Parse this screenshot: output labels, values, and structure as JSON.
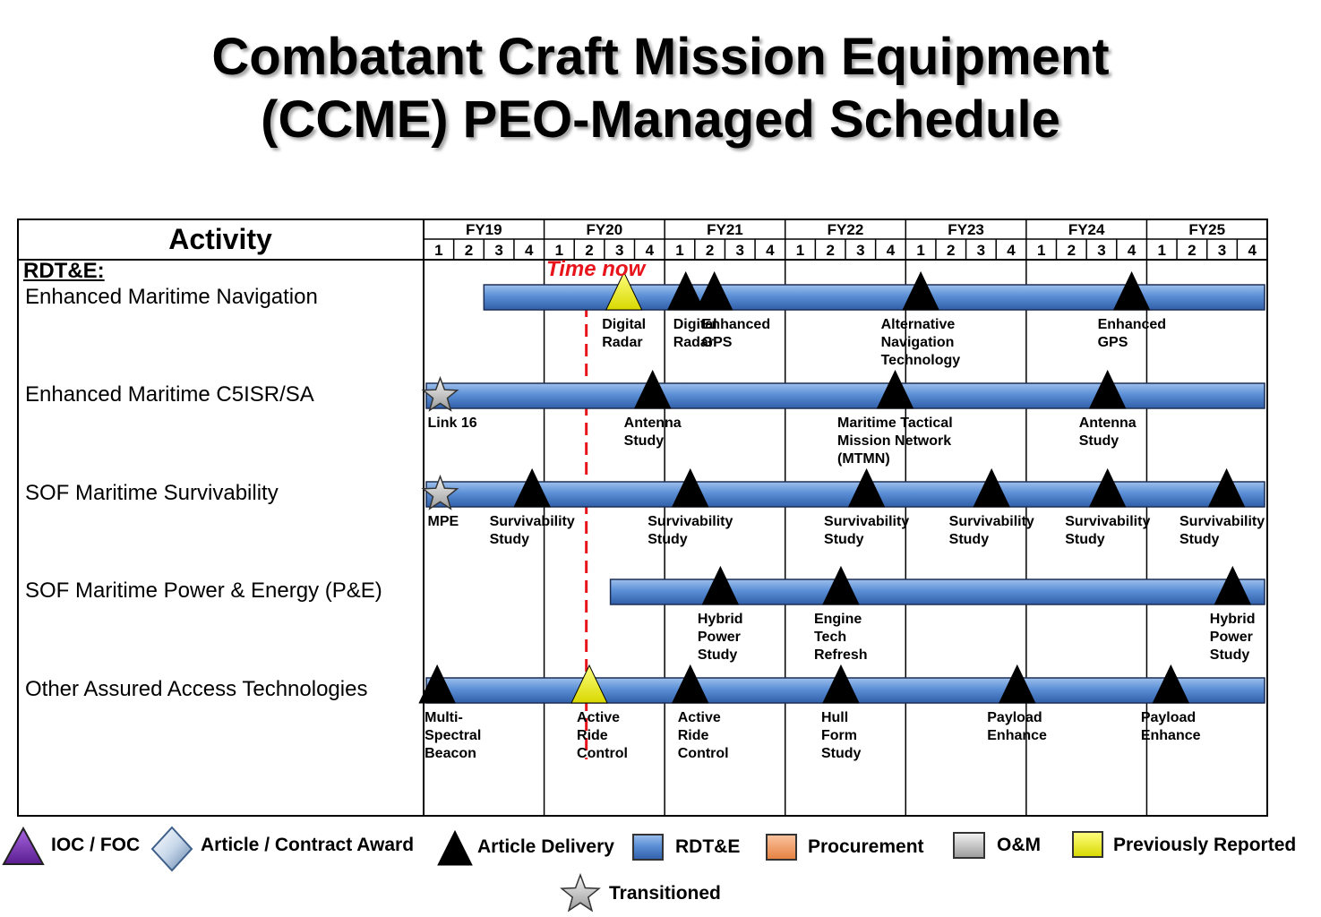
{
  "title": {
    "line1": "Combatant Craft Mission Equipment",
    "line2": "(CCME) PEO-Managed Schedule"
  },
  "header": {
    "activity": "Activity",
    "fiscal_years": [
      "FY19",
      "FY20",
      "FY21",
      "FY22",
      "FY23",
      "FY24",
      "FY25"
    ],
    "quarters": [
      "1",
      "2",
      "3",
      "4"
    ]
  },
  "section_label": "RDT&E:",
  "time_now": {
    "label": "Time now",
    "fy": "FY20",
    "quarter": 1.4,
    "color": "#e8141b"
  },
  "colors": {
    "rdte_bar": "#5b8fd6",
    "previously_reported": "#f3f300",
    "article_delivery": "#000000",
    "ioc": "#7a2fb5",
    "procurement": "#f4a070",
    "om": "#d0d0d0"
  },
  "rows": [
    {
      "name": "Enhanced Maritime Navigation",
      "bar_start": 2.0,
      "bar_end": 28.0,
      "milestones": [
        {
          "pos": 6.65,
          "type": "previously_reported",
          "lines": [
            "Digital",
            "Radar"
          ],
          "align": "center"
        },
        {
          "pos": 8.7,
          "type": "article_delivery",
          "lines": [
            "Digital",
            "Radar"
          ],
          "align": "left"
        },
        {
          "pos": 9.65,
          "type": "article_delivery",
          "lines": [
            "Enhanced",
            "GPS"
          ],
          "align": "left"
        },
        {
          "pos": 16.5,
          "type": "article_delivery",
          "lines": [
            "Alternative",
            "Navigation",
            "Technology"
          ],
          "align": "center"
        },
        {
          "pos": 23.5,
          "type": "article_delivery",
          "lines": [
            "Enhanced",
            "GPS"
          ],
          "align": "center"
        }
      ]
    },
    {
      "name": "Enhanced Maritime C5ISR/SA",
      "bar_start": 0.0,
      "bar_end": 28.0,
      "milestones": [
        {
          "pos": 0.55,
          "type": "transitioned",
          "lines": [
            "Link 16"
          ],
          "align": "left"
        },
        {
          "pos": 7.6,
          "type": "article_delivery",
          "lines": [
            "Antenna",
            "Study"
          ],
          "align": "center"
        },
        {
          "pos": 15.65,
          "type": "article_delivery",
          "lines": [
            "Maritime Tactical",
            "Mission Network",
            "(MTMN)"
          ],
          "align": "center"
        },
        {
          "pos": 22.7,
          "type": "article_delivery",
          "lines": [
            "Antenna",
            "Study"
          ],
          "align": "center"
        }
      ]
    },
    {
      "name": "SOF Maritime Survivability",
      "bar_start": 0.0,
      "bar_end": 28.0,
      "milestones": [
        {
          "pos": 0.55,
          "type": "transitioned",
          "lines": [
            "MPE"
          ],
          "align": "left"
        },
        {
          "pos": 3.6,
          "type": "article_delivery",
          "lines": [
            "Survivability",
            "Study"
          ],
          "align": "center"
        },
        {
          "pos": 8.85,
          "type": "article_delivery",
          "lines": [
            "Survivability",
            "Study"
          ],
          "align": "center"
        },
        {
          "pos": 14.7,
          "type": "article_delivery",
          "lines": [
            "Survivability",
            "Study"
          ],
          "align": "center"
        },
        {
          "pos": 18.85,
          "type": "article_delivery",
          "lines": [
            "Survivability",
            "Study"
          ],
          "align": "center"
        },
        {
          "pos": 22.7,
          "type": "article_delivery",
          "lines": [
            "Survivability",
            "Study"
          ],
          "align": "center"
        },
        {
          "pos": 26.65,
          "type": "article_delivery",
          "lines": [
            "Survivability",
            "Study"
          ],
          "align": "center"
        }
      ]
    },
    {
      "name": "SOF Maritime Power & Energy (P&E)",
      "bar_start": 6.2,
      "bar_end": 28.0,
      "milestones": [
        {
          "pos": 9.85,
          "type": "article_delivery",
          "lines": [
            "Hybrid",
            "Power",
            "Study"
          ],
          "align": "center"
        },
        {
          "pos": 13.85,
          "type": "article_delivery",
          "lines": [
            "Engine",
            "Tech",
            "Refresh"
          ],
          "align": "center"
        },
        {
          "pos": 26.85,
          "type": "article_delivery",
          "lines": [
            "Hybrid",
            "Power",
            "Study"
          ],
          "align": "center"
        }
      ]
    },
    {
      "name": "Other Assured Access Technologies",
      "bar_start": 0.0,
      "bar_end": 28.0,
      "milestones": [
        {
          "pos": 0.45,
          "type": "article_delivery",
          "lines": [
            "Multi-",
            "Spectral",
            "Beacon"
          ],
          "align": "left"
        },
        {
          "pos": 5.5,
          "type": "previously_reported",
          "lines": [
            "Active",
            "Ride",
            "Control"
          ],
          "align": "left"
        },
        {
          "pos": 8.85,
          "type": "article_delivery",
          "lines": [
            "Active",
            "Ride",
            "Control"
          ],
          "align": "left"
        },
        {
          "pos": 13.85,
          "type": "article_delivery",
          "lines": [
            "Hull",
            "Form",
            "Study"
          ],
          "align": "center"
        },
        {
          "pos": 19.7,
          "type": "article_delivery",
          "lines": [
            "Payload",
            "Enhance"
          ],
          "align": "center"
        },
        {
          "pos": 24.8,
          "type": "article_delivery",
          "lines": [
            "Payload",
            "Enhance"
          ],
          "align": "center"
        }
      ]
    }
  ],
  "legend": [
    {
      "symbol": "ioc-triangle",
      "label": "IOC / FOC"
    },
    {
      "symbol": "award-diamond",
      "label": "Article / Contract Award"
    },
    {
      "symbol": "delivery-triangle",
      "label": "Article Delivery"
    },
    {
      "symbol": "rdte-box",
      "label": "RDT&E"
    },
    {
      "symbol": "procurement-box",
      "label": "Procurement"
    },
    {
      "symbol": "om-box",
      "label": "O&M"
    },
    {
      "symbol": "previously-reported-box",
      "label": "Previously Reported"
    },
    {
      "symbol": "transitioned-star",
      "label": "Transitioned"
    }
  ]
}
